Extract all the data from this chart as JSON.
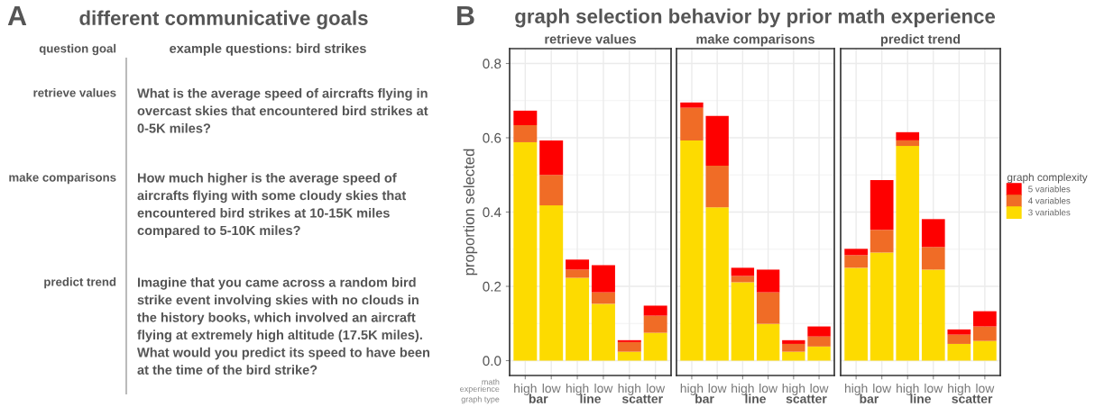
{
  "chart_data": [
    {
      "type": "other",
      "title": "different communicative goals",
      "annotations": [
        "A",
        "question goal",
        "example questions: bird strikes",
        "retrieve values",
        "What is the average speed of aircrafts flying in\novercast skies that encountered bird strikes at\n0-5K miles?",
        "make comparisons",
        "How much higher is the average speed of\naircrafts flying with some cloudy skies that\nencountered bird strikes at 10-15K miles\ncompared to 5-10K miles?",
        "predict trend",
        "Imagine that you came across a random bird\nstrike event involving skies with no clouds in\nthe history books, which involved an aircraft\nflying at extremely high altitude (17.5K miles).\nWhat would you predict its speed to have been\nat the time of the bird strike?"
      ]
    },
    {
      "type": "bar",
      "stacked": true,
      "title": "graph selection behavior by prior math experience",
      "subtitle": "retrieve values",
      "ylabel": "proportion selected",
      "xlabel": "math\nexperience",
      "annotations": [
        "B",
        "graph type",
        "bar",
        "line",
        "scatter"
      ],
      "categories": [
        "high",
        "low",
        "high",
        "low",
        "high",
        "low"
      ],
      "ylim": [
        -0.04,
        0.84
      ],
      "yticks": [
        {
          "value": 0,
          "label": "0.0"
        },
        0.2,
        0.4,
        0.6,
        0.8
      ],
      "grid": true,
      "series": [
        {
          "color": "#fddb00",
          "values": [
            0.588,
            0.418,
            0.223,
            0.153,
            0.024,
            0.075
          ]
        },
        {
          "color": "#f06c26",
          "values": [
            0.046,
            0.082,
            0.022,
            0.031,
            0.026,
            0.046
          ]
        },
        {
          "color": "#fe0000",
          "values": [
            0.039,
            0.093,
            0.027,
            0.073,
            0.005,
            0.027
          ]
        }
      ]
    },
    {
      "type": "bar",
      "stacked": true,
      "subtitle": "make comparisons",
      "tick_labels": "x",
      "annotations": [
        "bar",
        "line",
        "scatter"
      ],
      "categories": [
        "high",
        "low",
        "high",
        "low",
        "high",
        "low"
      ],
      "ylim": [
        -0.04,
        0.84
      ],
      "yticks": [
        0,
        0.2,
        0.4,
        0.6,
        0.8
      ],
      "grid": true,
      "series": [
        {
          "color": "#fddb00",
          "values": [
            0.593,
            0.413,
            0.211,
            0.099,
            0.024,
            0.038
          ]
        },
        {
          "color": "#f06c26",
          "values": [
            0.088,
            0.112,
            0.017,
            0.085,
            0.021,
            0.027
          ]
        },
        {
          "color": "#fe0000",
          "values": [
            0.014,
            0.134,
            0.022,
            0.061,
            0.01,
            0.027
          ]
        }
      ]
    },
    {
      "type": "bar",
      "stacked": true,
      "subtitle": "predict trend",
      "tick_labels": "x",
      "legend": "right",
      "legend_title": "graph complexity",
      "annotations": [
        "bar",
        "line",
        "scatter"
      ],
      "categories": [
        "high",
        "low",
        "high",
        "low",
        "high",
        "low"
      ],
      "ylim": [
        -0.04,
        0.84
      ],
      "yticks": [
        0,
        0.2,
        0.4,
        0.6,
        0.8
      ],
      "grid": true,
      "series": [
        {
          "name": "3 variables",
          "color": "#fddb00",
          "values": [
            0.25,
            0.291,
            0.578,
            0.245,
            0.045,
            0.053
          ]
        },
        {
          "name": "4 variables",
          "color": "#f06c26",
          "values": [
            0.034,
            0.061,
            0.015,
            0.061,
            0.025,
            0.039
          ]
        },
        {
          "name": "5 variables",
          "color": "#fe0000",
          "values": [
            0.017,
            0.134,
            0.022,
            0.075,
            0.014,
            0.041
          ]
        }
      ]
    }
  ]
}
